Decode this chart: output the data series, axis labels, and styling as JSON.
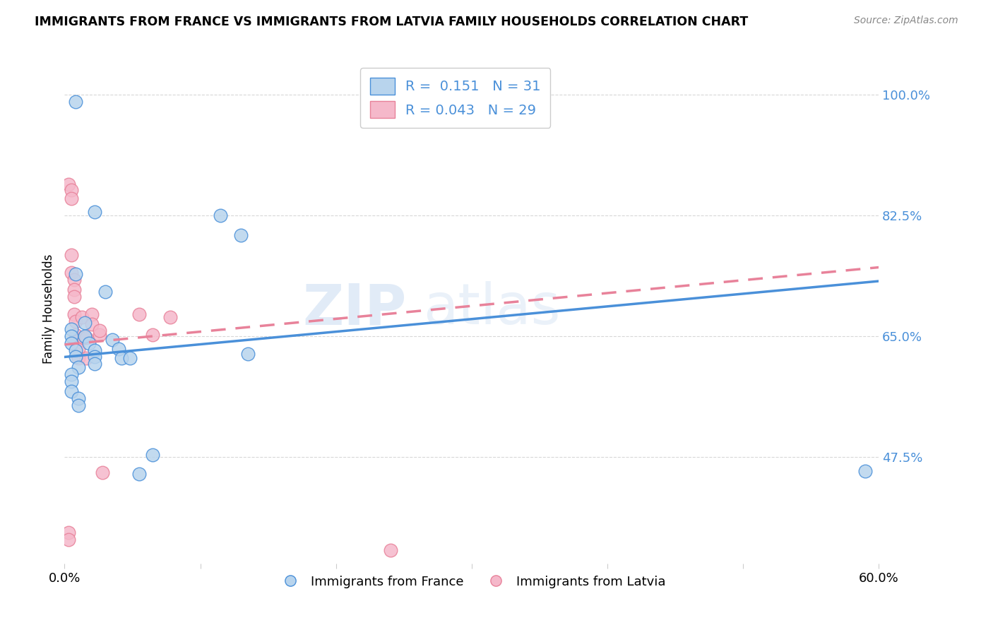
{
  "title": "IMMIGRANTS FROM FRANCE VS IMMIGRANTS FROM LATVIA FAMILY HOUSEHOLDS CORRELATION CHART",
  "source": "Source: ZipAtlas.com",
  "ylabel": "Family Households",
  "yticks": [
    0.475,
    0.65,
    0.825,
    1.0
  ],
  "ytick_labels": [
    "47.5%",
    "65.0%",
    "82.5%",
    "100.0%"
  ],
  "xlim": [
    0.0,
    0.6
  ],
  "ylim": [
    0.32,
    1.06
  ],
  "france_R": 0.151,
  "france_N": 31,
  "latvia_R": 0.043,
  "latvia_N": 29,
  "france_color": "#b8d4ed",
  "latvia_color": "#f5b8ca",
  "france_line_color": "#4a90d9",
  "latvia_line_color": "#e8829a",
  "france_scatter_x": [
    0.008,
    0.022,
    0.008,
    0.005,
    0.005,
    0.005,
    0.008,
    0.008,
    0.01,
    0.005,
    0.005,
    0.005,
    0.01,
    0.01,
    0.015,
    0.015,
    0.018,
    0.022,
    0.022,
    0.022,
    0.03,
    0.035,
    0.04,
    0.042,
    0.048,
    0.055,
    0.065,
    0.115,
    0.13,
    0.135,
    0.59
  ],
  "france_scatter_y": [
    0.99,
    0.83,
    0.74,
    0.66,
    0.65,
    0.64,
    0.63,
    0.62,
    0.605,
    0.595,
    0.585,
    0.57,
    0.56,
    0.55,
    0.67,
    0.65,
    0.64,
    0.63,
    0.62,
    0.61,
    0.715,
    0.645,
    0.632,
    0.618,
    0.618,
    0.45,
    0.478,
    0.825,
    0.797,
    0.625,
    0.455
  ],
  "latvia_scatter_x": [
    0.003,
    0.003,
    0.003,
    0.005,
    0.005,
    0.005,
    0.005,
    0.007,
    0.007,
    0.007,
    0.007,
    0.008,
    0.008,
    0.009,
    0.01,
    0.01,
    0.013,
    0.014,
    0.016,
    0.016,
    0.02,
    0.02,
    0.026,
    0.026,
    0.028,
    0.055,
    0.065,
    0.078,
    0.24
  ],
  "latvia_scatter_y": [
    0.365,
    0.355,
    0.87,
    0.862,
    0.85,
    0.768,
    0.742,
    0.732,
    0.718,
    0.708,
    0.682,
    0.672,
    0.652,
    0.642,
    0.632,
    0.618,
    0.678,
    0.648,
    0.648,
    0.618,
    0.682,
    0.668,
    0.652,
    0.658,
    0.452,
    0.682,
    0.652,
    0.678,
    0.34
  ],
  "france_trend_x": [
    0.0,
    0.6
  ],
  "france_trend_y": [
    0.62,
    0.73
  ],
  "latvia_trend_x": [
    0.0,
    0.6
  ],
  "latvia_trend_y": [
    0.638,
    0.75
  ],
  "watermark": "ZIPatlas",
  "background_color": "#ffffff",
  "grid_color": "#d8d8d8"
}
